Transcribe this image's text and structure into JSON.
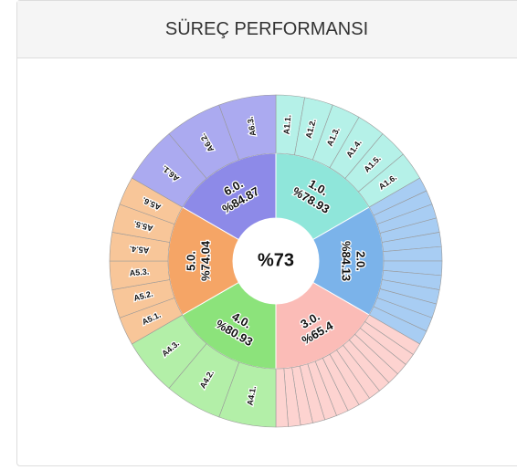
{
  "chart_data": {
    "type": "sunburst",
    "title": "SÜREÇ PERFORMANSI",
    "center_value": 73,
    "center_label": "%73",
    "categories": [
      "1.0.",
      "2.0.",
      "3.0.",
      "4.0.",
      "5.0.",
      "6.0."
    ],
    "values": [
      78.93,
      84.13,
      65.4,
      80.93,
      74.04,
      84.87
    ],
    "value_labels": [
      "%78.93",
      "%84.13",
      "%65.4",
      "%80.93",
      "%74.04",
      "%84.87"
    ],
    "colors": [
      "#8fe6da",
      "#7bb3ea",
      "#fbbcb7",
      "#8ce37b",
      "#f5a566",
      "#8d8ae8"
    ],
    "child_colors": [
      "#b5f1e8",
      "#a8cdf3",
      "#fdd3d0",
      "#b3efa8",
      "#f8c699",
      "#abaaf0"
    ],
    "children": [
      [
        "A1.1.",
        "A1.2.",
        "A1.3.",
        "A1.4.",
        "A1.5.",
        "A1.6."
      ],
      [
        null,
        null,
        null,
        null,
        null,
        null,
        null,
        null,
        null,
        null,
        null,
        null
      ],
      [
        null,
        null,
        null,
        null,
        null,
        null,
        null,
        null,
        null,
        null,
        null,
        null,
        null,
        null
      ],
      [
        "A4.1.",
        "A4.2.",
        "A4.3."
      ],
      [
        "A5.1.",
        "A5.2.",
        "A5.3.",
        "A5.4.",
        "A5.5.",
        "A5.6."
      ],
      [
        "A6.1.",
        "A6.2.",
        "A6.3."
      ]
    ]
  }
}
